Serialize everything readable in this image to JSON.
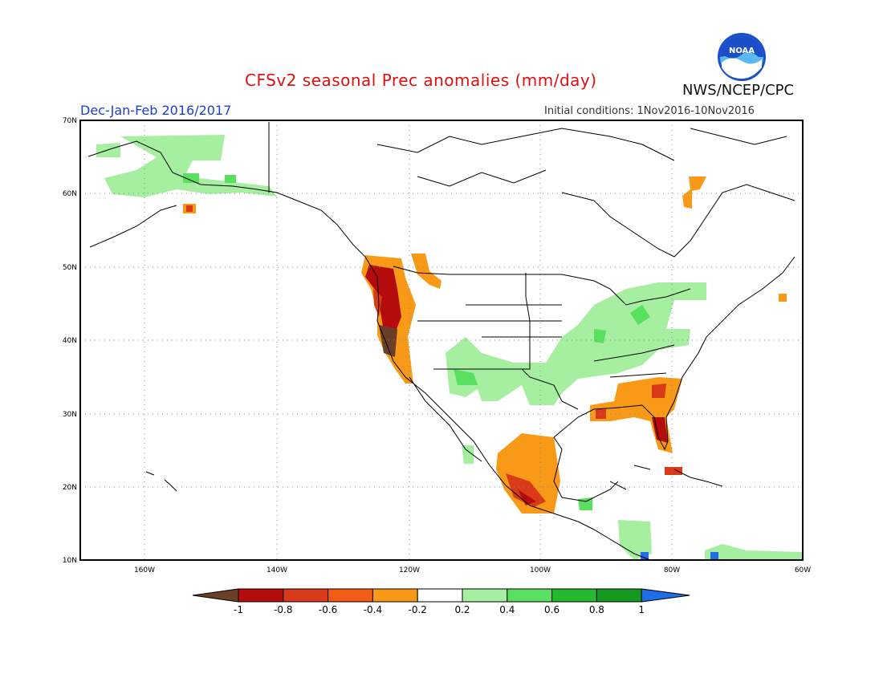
{
  "header": {
    "title": "CFSv2 seasonal Prec anomalies (mm/day)",
    "season": "Dec-Jan-Feb 2016/2017",
    "initial_conditions": "Initial conditions: 1Nov2016-10Nov2016",
    "agency": "NWS/NCEP/CPC",
    "logo_text": "NOAA"
  },
  "map": {
    "lat_labels": [
      "70N",
      "60N",
      "50N",
      "40N",
      "30N",
      "20N",
      "10N"
    ],
    "lon_labels": [
      "160W",
      "140W",
      "120W",
      "100W",
      "80W",
      "60W"
    ],
    "grid": "dotted"
  },
  "legend": {
    "tick_labels": [
      "-1",
      "-0.8",
      "-0.6",
      "-0.4",
      "-0.2",
      "0.2",
      "0.4",
      "0.6",
      "0.8",
      "1"
    ],
    "colors": [
      "#6b3e28",
      "#b40c0c",
      "#d83a1a",
      "#f25c14",
      "#f89a18",
      "#ffffff",
      "#a6eea0",
      "#5ae060",
      "#26b82e",
      "#149a1e",
      "#1e6ee8"
    ]
  },
  "anomaly_regions": [
    {
      "name": "Pacific Northwest coast",
      "category": "-0.8 to -1.0",
      "color": "#b40c0c"
    },
    {
      "name": "Northern California coast",
      "category": "-1 and below",
      "color": "#6b3e28"
    },
    {
      "name": "Southeast US / Florida",
      "category": "-0.2 to -0.6",
      "color": "#f89a18"
    },
    {
      "name": "Western Mexico",
      "category": "-0.2 to -0.8",
      "color": "#f89a18"
    },
    {
      "name": "Ohio Valley / Central Plains",
      "category": "0.2 to 0.4",
      "color": "#a6eea0"
    },
    {
      "name": "Alaska",
      "category": "0.2 to 0.6",
      "color": "#a6eea0"
    }
  ]
}
